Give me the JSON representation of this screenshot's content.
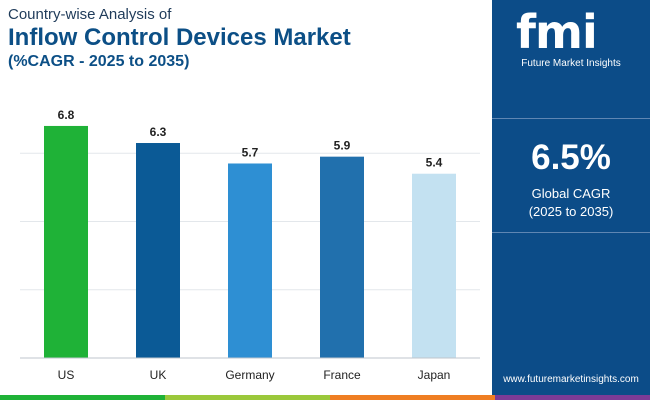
{
  "header": {
    "subtitle_top": "Country-wise Analysis of",
    "title": "Inflow Control Devices Market",
    "cagr_subtitle": "(%CAGR - 2025 to 2035)"
  },
  "sidebar": {
    "logo_text": "fmi",
    "logo_subtext": "Future Market Insights",
    "cagr_value": "6.5%",
    "cagr_label": "Global CAGR",
    "cagr_period": "(2025 to 2035)",
    "website": "www.futuremarketinsights.com",
    "background_color": "#0c4c88"
  },
  "chart_data": {
    "type": "bar",
    "title": "Inflow Control Devices Market",
    "subtitle": "(%CAGR - 2025 to 2035)",
    "xlabel": "",
    "ylabel": "",
    "categories": [
      "US",
      "UK",
      "Germany",
      "France",
      "Japan"
    ],
    "values": [
      6.8,
      6.3,
      5.7,
      5.9,
      5.4
    ],
    "value_labels": [
      "6.8",
      "6.3",
      "5.7",
      "5.9",
      "5.4"
    ],
    "colors": [
      "#1fb237",
      "#0b5a96",
      "#2e8fd3",
      "#2170ad",
      "#c3e1f1"
    ],
    "ylim": [
      0,
      8
    ],
    "gridlines": [
      2,
      4,
      6
    ],
    "grid": true,
    "legend": "none"
  },
  "bottom_bar_colors": [
    "#1fb237",
    "#9bc83b",
    "#ef7e22",
    "#7c3b96"
  ]
}
